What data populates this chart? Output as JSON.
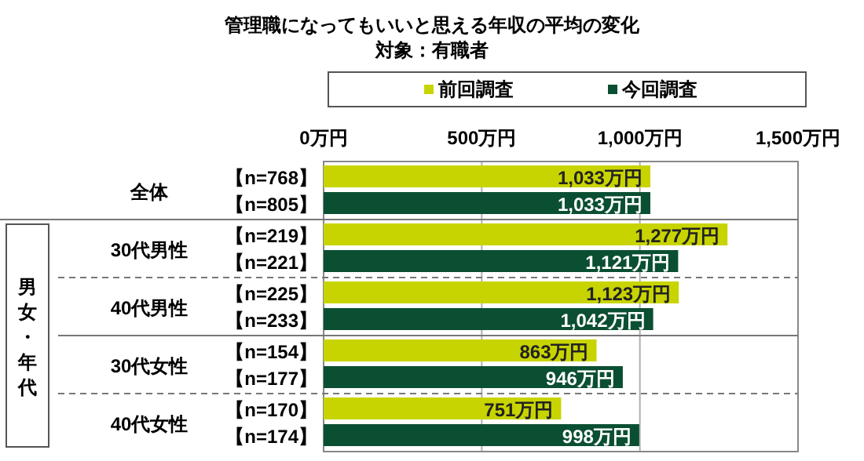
{
  "chart_data": {
    "type": "bar",
    "orientation": "horizontal",
    "title": "管理職になってもいいと思える年収の平均の変化",
    "subtitle": "対象：有職者",
    "categories": [
      "全体",
      "30代男性",
      "40代男性",
      "30代女性",
      "40代女性"
    ],
    "series": [
      {
        "name": "前回調査",
        "color": "#c8d400",
        "values": [
          1033,
          1277,
          1123,
          863,
          751
        ],
        "value_labels": [
          "1,033万円",
          "1,277万円",
          "1,123万円",
          "863万円",
          "751万円"
        ]
      },
      {
        "name": "今回調査",
        "color": "#0b4f32",
        "values": [
          1033,
          1121,
          1042,
          946,
          998
        ],
        "value_labels": [
          "1,033万円",
          "1,121万円",
          "1,042万円",
          "946万円",
          "998万円"
        ]
      }
    ],
    "xlim": [
      0,
      1500
    ],
    "xticks": [
      {
        "value": 0,
        "label": "0万円"
      },
      {
        "value": 500,
        "label": "500万円"
      },
      {
        "value": 1000,
        "label": "1,000万円"
      },
      {
        "value": 1500,
        "label": "1,500万円"
      }
    ],
    "grid": "x",
    "legend": "top",
    "annotations": [
      "【n=768】",
      "【n=805】",
      "【n=219】",
      "【n=221】",
      "【n=225】",
      "【n=233】",
      "【n=154】",
      "【n=177】",
      "【n=170】",
      "【n=174】",
      "男女・年代"
    ]
  }
}
